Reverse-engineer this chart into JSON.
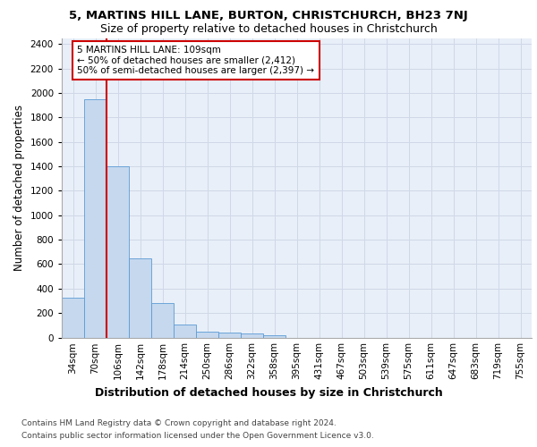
{
  "title1": "5, MARTINS HILL LANE, BURTON, CHRISTCHURCH, BH23 7NJ",
  "title2": "Size of property relative to detached houses in Christchurch",
  "xlabel": "Distribution of detached houses by size in Christchurch",
  "ylabel": "Number of detached properties",
  "footer1": "Contains HM Land Registry data © Crown copyright and database right 2024.",
  "footer2": "Contains public sector information licensed under the Open Government Licence v3.0.",
  "bin_labels": [
    "34sqm",
    "70sqm",
    "106sqm",
    "142sqm",
    "178sqm",
    "214sqm",
    "250sqm",
    "286sqm",
    "322sqm",
    "358sqm",
    "395sqm",
    "431sqm",
    "467sqm",
    "503sqm",
    "539sqm",
    "575sqm",
    "611sqm",
    "647sqm",
    "683sqm",
    "719sqm",
    "755sqm"
  ],
  "bar_values": [
    325,
    1950,
    1400,
    650,
    280,
    105,
    50,
    40,
    35,
    20,
    0,
    0,
    0,
    0,
    0,
    0,
    0,
    0,
    0,
    0,
    0
  ],
  "bar_color": "#c5d8ee",
  "bar_edge_color": "#5b9bd5",
  "property_label": "5 MARTINS HILL LANE: 109sqm",
  "annotation_line1": "← 50% of detached houses are smaller (2,412)",
  "annotation_line2": "50% of semi-detached houses are larger (2,397) →",
  "vline_color": "#cc0000",
  "vline_x": 1.5,
  "annotation_box_color": "#ffffff",
  "annotation_box_edge_color": "#cc0000",
  "ylim": [
    0,
    2450
  ],
  "yticks": [
    0,
    200,
    400,
    600,
    800,
    1000,
    1200,
    1400,
    1600,
    1800,
    2000,
    2200,
    2400
  ],
  "grid_color": "#d0d8e8",
  "bg_color": "#e8eff8",
  "fig_bg_color": "#ffffff",
  "title1_fontsize": 9.5,
  "title2_fontsize": 9,
  "xlabel_fontsize": 9,
  "ylabel_fontsize": 8.5,
  "tick_fontsize": 7.5,
  "annotation_fontsize": 7.5,
  "footer_fontsize": 6.5
}
